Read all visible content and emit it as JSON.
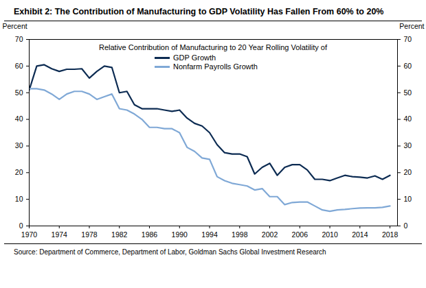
{
  "chart_data": {
    "type": "line",
    "title": "Exhibit 2: The Contribution of Manufacturing to GDP Volatility Has Fallen From 60% to 20%",
    "subtitle": "Relative Contribution of Manufacturing to 20 Year Rolling Volatility of",
    "y_label": "Percent",
    "y2_label": "Percent",
    "source": "Source: Department of Commerce, Department of Labor, Goldman Sachs Global Investment Research",
    "x": [
      1970,
      1971,
      1972,
      1973,
      1974,
      1975,
      1976,
      1977,
      1978,
      1979,
      1980,
      1981,
      1982,
      1983,
      1984,
      1985,
      1986,
      1987,
      1988,
      1989,
      1990,
      1991,
      1992,
      1993,
      1994,
      1995,
      1996,
      1997,
      1998,
      1999,
      2000,
      2001,
      2002,
      2003,
      2004,
      2005,
      2006,
      2007,
      2008,
      2009,
      2010,
      2011,
      2012,
      2013,
      2014,
      2015,
      2016,
      2017,
      2018
    ],
    "series": [
      {
        "name": "GDP Growth",
        "color": "#0c2b52",
        "values": [
          51,
          60,
          60.5,
          59,
          58,
          58.8,
          58.8,
          59,
          55.5,
          58,
          60,
          59.5,
          50,
          50.5,
          45.5,
          44,
          44,
          44,
          43.5,
          43,
          43.5,
          40.5,
          38.5,
          37.5,
          35,
          30.5,
          27.5,
          27,
          27,
          26,
          19.5,
          22,
          23.5,
          19,
          22,
          23,
          23,
          21,
          17.5,
          17.5,
          17,
          18,
          19,
          18.5,
          18.3,
          18,
          18.8,
          17.5,
          19
        ]
      },
      {
        "name": "Nonfarm Payrolls Growth",
        "color": "#7fa8d6",
        "values": [
          51.5,
          51.5,
          51,
          49.5,
          47.5,
          49.5,
          50.5,
          50.5,
          49.5,
          47.5,
          48.5,
          49.5,
          44,
          43.5,
          42,
          40,
          37,
          37,
          36.5,
          36.5,
          35,
          29.5,
          28,
          25.5,
          25,
          18.5,
          17,
          16,
          15.5,
          15,
          13.5,
          14,
          11,
          11,
          8,
          8.8,
          9,
          9,
          7.5,
          6,
          5.5,
          6,
          6.2,
          6.5,
          6.7,
          6.8,
          6.8,
          7,
          7.5
        ]
      }
    ],
    "xlim": [
      1970,
      2019
    ],
    "xticks": [
      1970,
      1974,
      1978,
      1982,
      1986,
      1990,
      1994,
      1998,
      2002,
      2006,
      2010,
      2014,
      2018
    ],
    "ylim": [
      0,
      70
    ],
    "yticks": [
      0,
      10,
      20,
      30,
      40,
      50,
      60,
      70
    ],
    "y2lim": [
      0,
      70
    ],
    "y2ticks": [
      0,
      10,
      20,
      30,
      40,
      50,
      60,
      70
    ],
    "grid": false,
    "legend": "top"
  }
}
